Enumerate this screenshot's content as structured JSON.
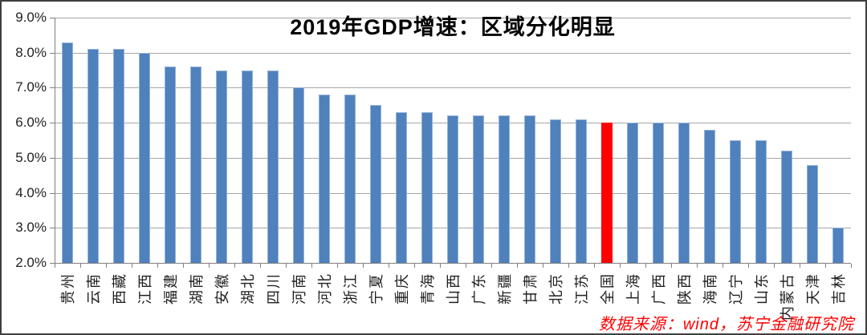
{
  "chart_data": {
    "type": "bar",
    "title": "2019年GDP增速：区域分化明显",
    "categories": [
      "贵州",
      "云南",
      "西藏",
      "江西",
      "福建",
      "湖南",
      "安徽",
      "湖北",
      "四川",
      "河南",
      "河北",
      "浙江",
      "宁夏",
      "重庆",
      "青海",
      "山西",
      "广东",
      "新疆",
      "甘肃",
      "北京",
      "江苏",
      "全国",
      "上海",
      "广西",
      "陕西",
      "海南",
      "辽宁",
      "山东",
      "内蒙古",
      "天津",
      "吉林"
    ],
    "values": [
      8.3,
      8.1,
      8.1,
      8.0,
      7.6,
      7.6,
      7.5,
      7.5,
      7.5,
      7.0,
      6.8,
      6.8,
      6.5,
      6.3,
      6.3,
      6.2,
      6.2,
      6.2,
      6.2,
      6.1,
      6.1,
      6.0,
      6.0,
      6.0,
      6.0,
      5.8,
      5.5,
      5.5,
      5.2,
      4.8,
      3.0
    ],
    "unit": "%",
    "highlight_category": "全国",
    "bar_color": "#4f81bd",
    "bar_border_color": "#95b3d7",
    "highlight_color": "#ff0000",
    "ylim": [
      2.0,
      9.0
    ],
    "ytick_step": 1.0,
    "ytick_labels": [
      "9.0%",
      "8.0%",
      "7.0%",
      "6.0%",
      "5.0%",
      "4.0%",
      "3.0%",
      "2.0%"
    ],
    "grid": true,
    "legend": "none",
    "source_note": "数据来源：wind，苏宁金融研究院"
  }
}
